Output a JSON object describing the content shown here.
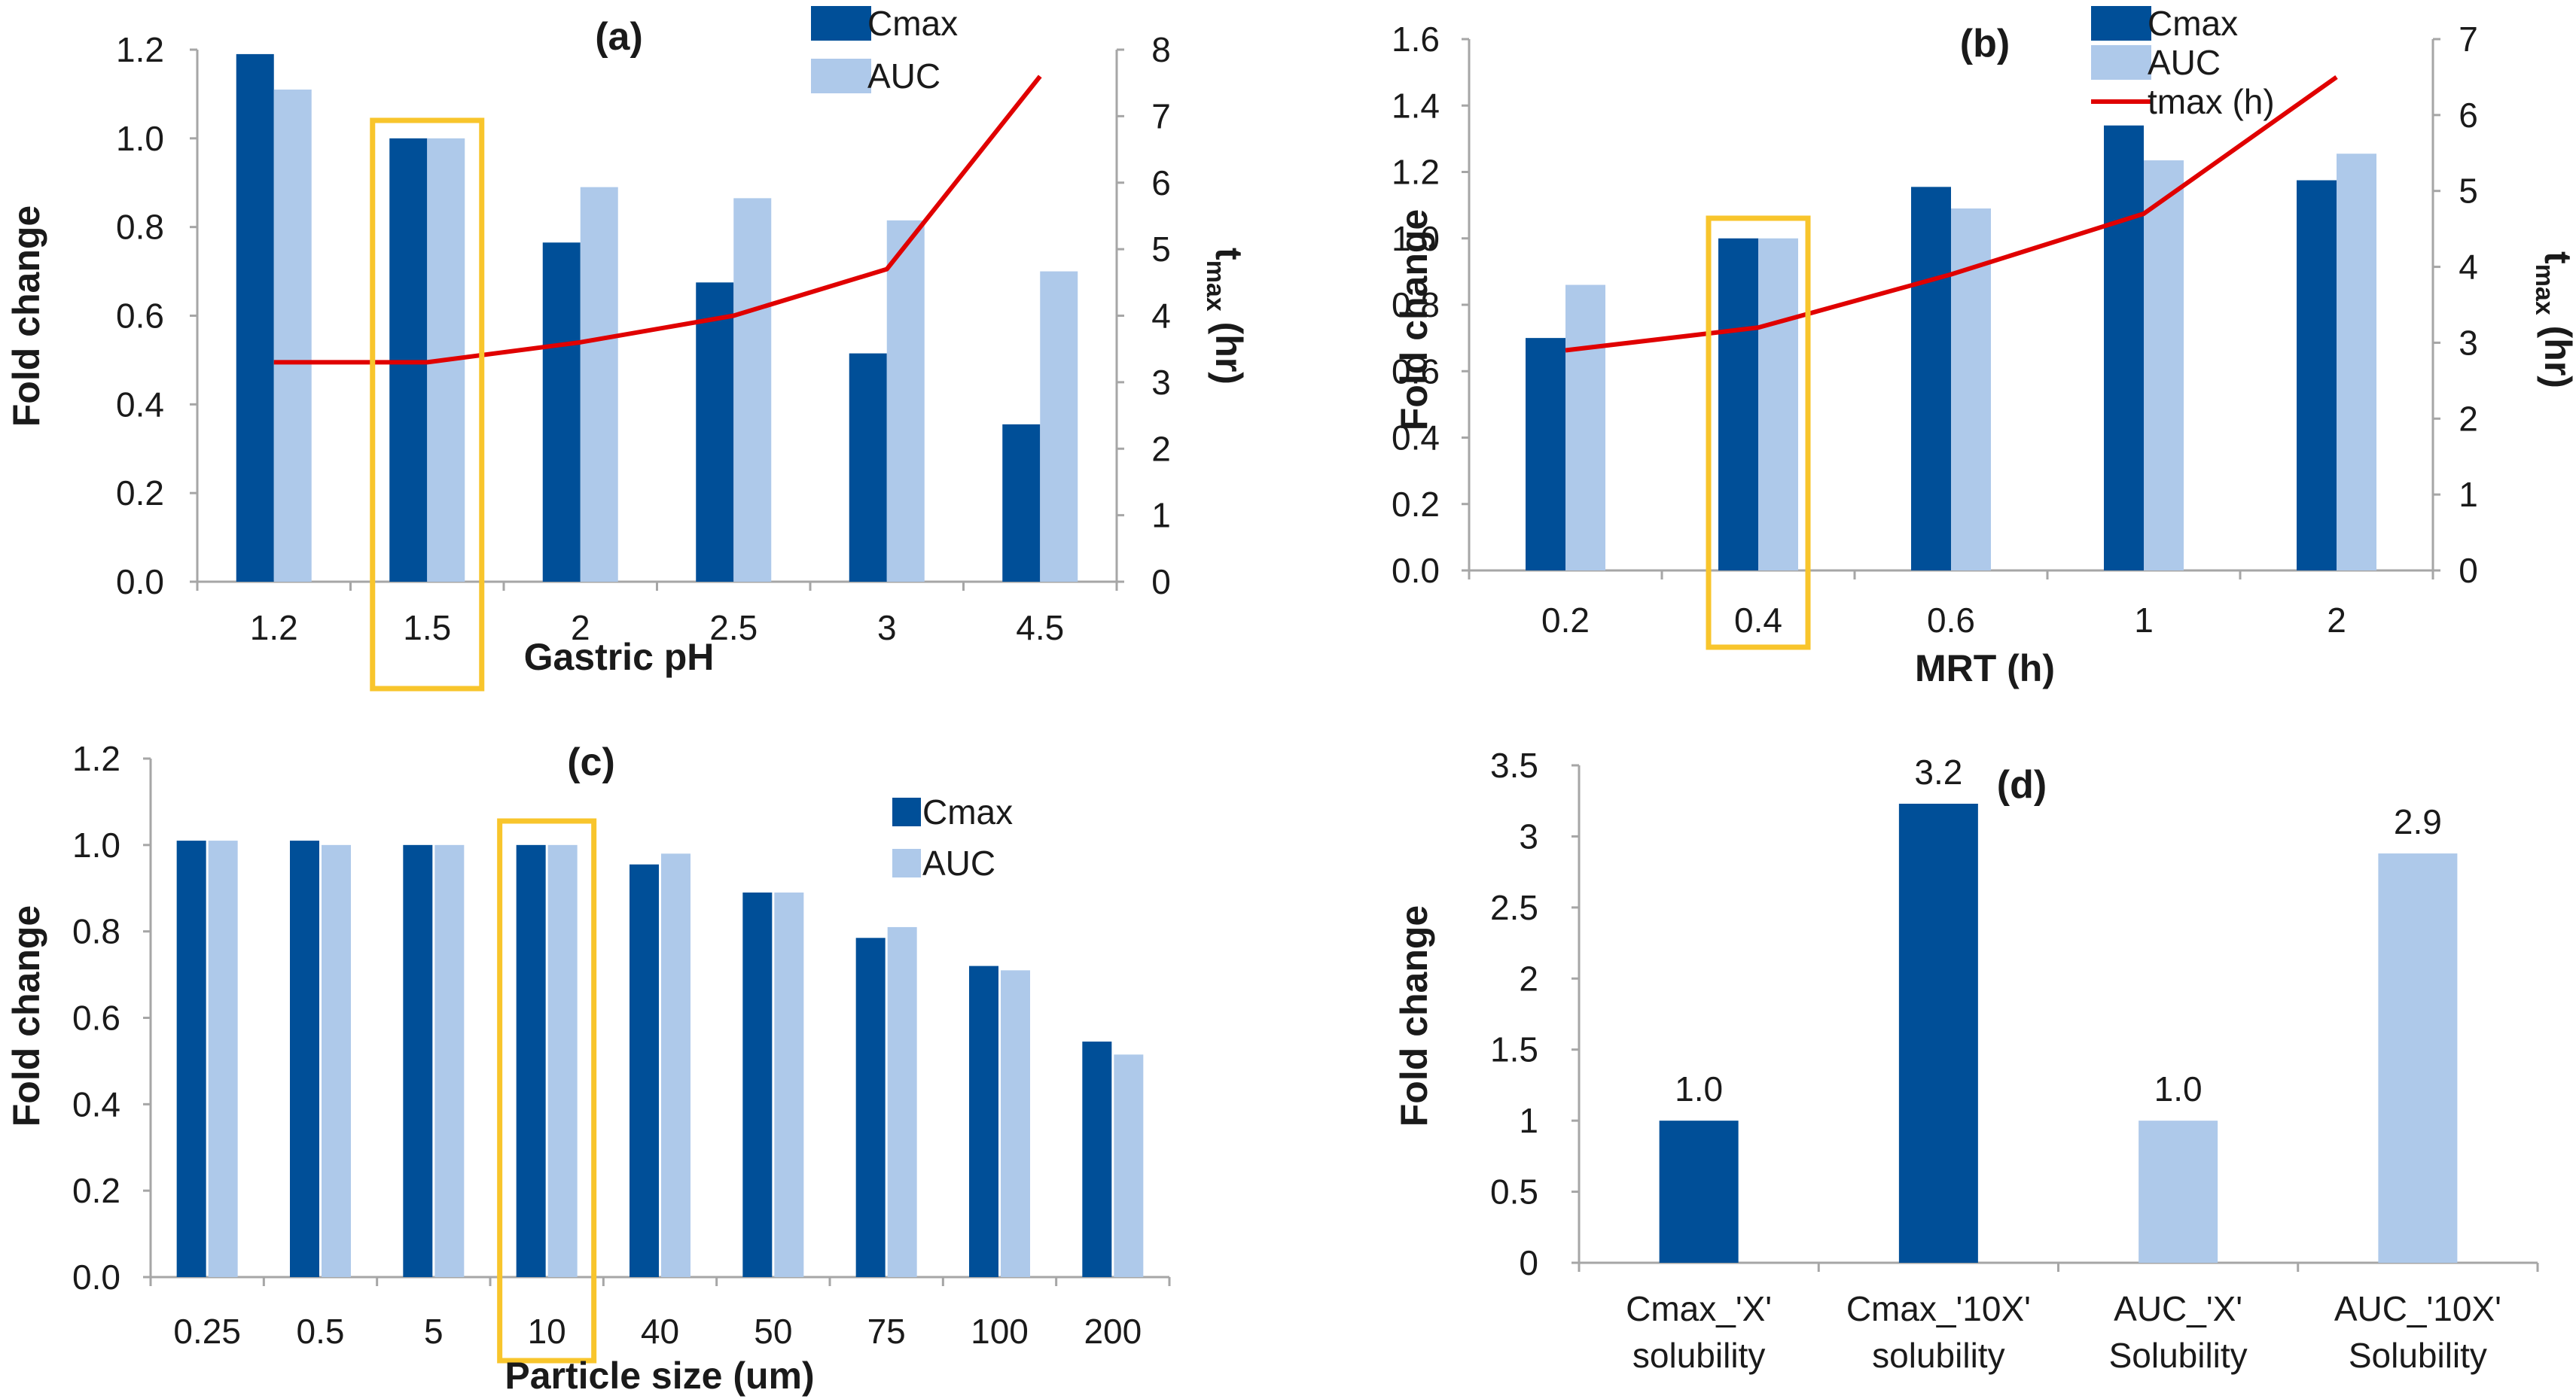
{
  "colors": {
    "cmax": "#004f98",
    "auc": "#aec9ea",
    "tmax": "#e00000",
    "highlight": "#f8c52c",
    "axis": "#a6a6a6"
  },
  "chart_data": [
    {
      "type": "bar",
      "panel": "(a)",
      "xlabel": "Gastric pH",
      "ylabel": "Fold change",
      "y2label_main": "t",
      "y2label_sub": "max",
      "y2label_unit": " (hr)",
      "categories": [
        "1.2",
        "1.5",
        "2",
        "2.5",
        "3",
        "4.5"
      ],
      "series": [
        {
          "name": "Cmax",
          "values": [
            1.19,
            1.0,
            0.765,
            0.675,
            0.515,
            0.355
          ]
        },
        {
          "name": "AUC",
          "values": [
            1.11,
            1.0,
            0.89,
            0.865,
            0.815,
            0.7
          ]
        }
      ],
      "line": {
        "name": "tmax",
        "values": [
          3.3,
          3.3,
          3.6,
          4.0,
          4.7,
          7.6
        ]
      },
      "ylim": [
        0,
        1.2
      ],
      "yticks": [
        "0.0",
        "0.2",
        "0.4",
        "0.6",
        "0.8",
        "1.0",
        "1.2"
      ],
      "y2lim": [
        0,
        8
      ],
      "y2ticks": [
        "0",
        "1",
        "2",
        "3",
        "4",
        "5",
        "6",
        "7",
        "8"
      ],
      "highlight_category": "1.5",
      "legend": [
        "Cmax",
        "AUC"
      ],
      "legend_position": "top-right"
    },
    {
      "type": "bar",
      "panel": "(b)",
      "xlabel": "MRT (h)",
      "ylabel": "Fold change",
      "y2label_main": "t",
      "y2label_sub": "max",
      "y2label_unit": " (hr)",
      "categories": [
        "0.2",
        "0.4",
        "0.6",
        "1",
        "2"
      ],
      "series": [
        {
          "name": "Cmax",
          "values": [
            0.7,
            1.0,
            1.155,
            1.34,
            1.175
          ]
        },
        {
          "name": "AUC",
          "values": [
            0.86,
            1.0,
            1.09,
            1.235,
            1.255
          ]
        }
      ],
      "line": {
        "name": "tmax (h)",
        "values": [
          2.9,
          3.2,
          3.9,
          4.7,
          6.5
        ]
      },
      "ylim": [
        0,
        1.6
      ],
      "yticks": [
        "0.0",
        "0.2",
        "0.4",
        "0.6",
        "0.8",
        "1.0",
        "1.2",
        "1.4",
        "1.6"
      ],
      "y2lim": [
        0,
        7
      ],
      "y2ticks": [
        "0",
        "1",
        "2",
        "3",
        "4",
        "5",
        "6",
        "7"
      ],
      "highlight_category": "0.4",
      "legend": [
        "Cmax",
        "AUC",
        "tmax (h)"
      ],
      "legend_position": "top-right"
    },
    {
      "type": "bar",
      "panel": "(c)",
      "xlabel": "Particle size (um)",
      "ylabel": "Fold change",
      "categories": [
        "0.25",
        "0.5",
        "5",
        "10",
        "40",
        "50",
        "75",
        "100",
        "200"
      ],
      "series": [
        {
          "name": "Cmax",
          "values": [
            1.01,
            1.01,
            1.0,
            1.0,
            0.955,
            0.89,
            0.785,
            0.72,
            0.545
          ]
        },
        {
          "name": "AUC",
          "values": [
            1.01,
            1.0,
            1.0,
            1.0,
            0.98,
            0.89,
            0.81,
            0.71,
            0.515
          ]
        }
      ],
      "ylim": [
        0,
        1.2
      ],
      "yticks": [
        "0.0",
        "0.2",
        "0.4",
        "0.6",
        "0.8",
        "1.0",
        "1.2"
      ],
      "highlight_category": "10",
      "legend": [
        "Cmax",
        "AUC"
      ],
      "legend_position": "top-right"
    },
    {
      "type": "bar",
      "panel": "(d)",
      "xlabel": "",
      "ylabel": "Fold change",
      "categories": [
        [
          "Cmax_'X'",
          "solubility"
        ],
        [
          "Cmax_'10X'",
          "solubility"
        ],
        [
          "AUC_'X'",
          "Solubility"
        ],
        [
          "AUC_'10X'",
          "Solubility"
        ]
      ],
      "values": [
        1.0,
        3.23,
        1.0,
        2.88
      ],
      "value_labels": [
        "1.0",
        "3.2",
        "1.0",
        "2.9"
      ],
      "bar_series": [
        "Cmax",
        "Cmax",
        "AUC",
        "AUC"
      ],
      "ylim": [
        0,
        3.5
      ],
      "yticks": [
        "0",
        "0.5",
        "1",
        "1.5",
        "2",
        "2.5",
        "3",
        "3.5"
      ]
    }
  ]
}
